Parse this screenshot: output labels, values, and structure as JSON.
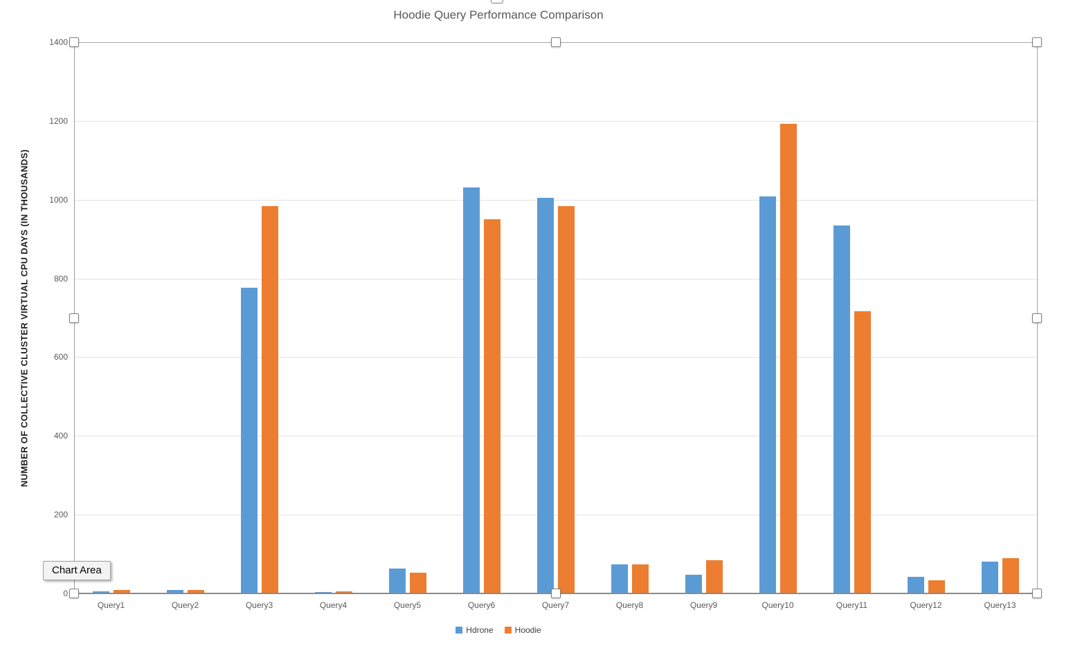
{
  "chart_data": {
    "type": "bar",
    "title": "Hoodie Query Performance Comparison",
    "xlabel": "",
    "ylabel": "NUMBER OF COLLECTIVE CLUSTER VIRTUAL CPU DAYS (IN THOUSANDS)",
    "categories": [
      "Query1",
      "Query2",
      "Query3",
      "Query4",
      "Query5",
      "Query6",
      "Query7",
      "Query8",
      "Query9",
      "Query10",
      "Query11",
      "Query12",
      "Query13"
    ],
    "series": [
      {
        "name": "Hdrone",
        "color": "#5B9BD5",
        "values": [
          5,
          8,
          776,
          4,
          63,
          1031,
          1004,
          74,
          48,
          1008,
          934,
          42,
          81
        ]
      },
      {
        "name": "Hoodie",
        "color": "#ED7D31",
        "values": [
          9,
          8,
          984,
          5,
          52,
          950,
          984,
          74,
          84,
          1193,
          716,
          33,
          90
        ]
      }
    ],
    "ylim": [
      0,
      1400
    ],
    "ytick_interval": 200,
    "grid": true,
    "legend_position": "bottom"
  },
  "tooltip": {
    "label": "Chart Area"
  },
  "colors": {
    "hdrone": "#5B9BD5",
    "hoodie": "#ED7D31",
    "gridline": "#e2e2e2",
    "axis": "#9a9a9a",
    "selection_border": "#a6a6a6",
    "title_text": "#595959",
    "tick_text": "#595959"
  }
}
